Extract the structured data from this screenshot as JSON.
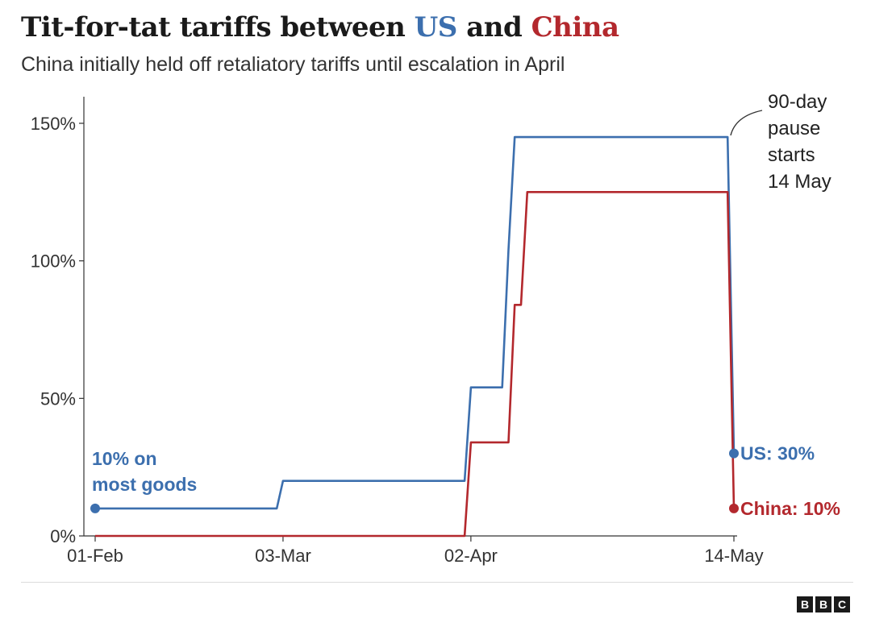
{
  "header": {
    "title_prefix": "Tit-for-tat tariffs between ",
    "title_us": "US",
    "title_mid": " and ",
    "title_china": "China",
    "subtitle": "China initially held off retaliatory tariffs until escalation in April"
  },
  "logo": {
    "letters": [
      "B",
      "B",
      "C"
    ]
  },
  "colors": {
    "us": "#3c6fae",
    "china": "#b3282d",
    "axis": "#333333",
    "grid": "#cccccc"
  },
  "chart_data": {
    "type": "line",
    "title": "Tit-for-tat tariffs between US and China",
    "subtitle": "China initially held off retaliatory tariffs until escalation in April",
    "xlabel": "",
    "ylabel": "",
    "ylim": [
      0,
      150
    ],
    "y_ticks": [
      {
        "value": 0,
        "label": "0%"
      },
      {
        "value": 50,
        "label": "50%"
      },
      {
        "value": 100,
        "label": "100%"
      },
      {
        "value": 150,
        "label": "150%"
      }
    ],
    "x_range": [
      "2025-02-01",
      "2025-05-14"
    ],
    "x_ticks": [
      {
        "date": "2025-02-01",
        "label": "01-Feb"
      },
      {
        "date": "2025-03-03",
        "label": "03-Mar"
      },
      {
        "date": "2025-04-02",
        "label": "02-Apr"
      },
      {
        "date": "2025-05-14",
        "label": "14-May"
      }
    ],
    "grid": false,
    "series": [
      {
        "name": "US",
        "points": [
          {
            "date": "2025-02-01",
            "value": 10
          },
          {
            "date": "2025-03-02",
            "value": 10
          },
          {
            "date": "2025-03-03",
            "value": 20
          },
          {
            "date": "2025-04-01",
            "value": 20
          },
          {
            "date": "2025-04-02",
            "value": 54
          },
          {
            "date": "2025-04-07",
            "value": 54
          },
          {
            "date": "2025-04-08",
            "value": 104
          },
          {
            "date": "2025-04-09",
            "value": 145
          },
          {
            "date": "2025-05-13",
            "value": 145
          },
          {
            "date": "2025-05-14",
            "value": 30
          }
        ],
        "end_label": "US: 30%"
      },
      {
        "name": "China",
        "points": [
          {
            "date": "2025-02-01",
            "value": 0
          },
          {
            "date": "2025-04-01",
            "value": 0
          },
          {
            "date": "2025-04-02",
            "value": 34
          },
          {
            "date": "2025-04-08",
            "value": 34
          },
          {
            "date": "2025-04-09",
            "value": 84
          },
          {
            "date": "2025-04-10",
            "value": 84
          },
          {
            "date": "2025-04-11",
            "value": 125
          },
          {
            "date": "2025-05-13",
            "value": 125
          },
          {
            "date": "2025-05-14",
            "value": 10
          }
        ],
        "end_label": "China: 10%"
      }
    ],
    "annotations": {
      "start_label_lines": [
        "10% on",
        "most goods"
      ],
      "pause_label_lines": [
        "90-day",
        "pause",
        "starts",
        "14 May"
      ]
    }
  }
}
